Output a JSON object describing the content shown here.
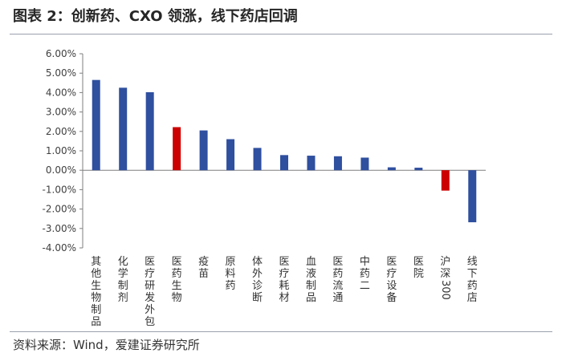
{
  "title": "图表 2：创新药、CXO 领涨，线下药店回调",
  "source": "资料来源：Wind，爱建证券研究所",
  "colors": {
    "default": "#2f4f9f",
    "highlight": "#cc0000",
    "axis": "#7f7f7f",
    "text": "#404040"
  },
  "chart_data": {
    "type": "bar",
    "title": "",
    "xlabel": "",
    "ylabel": "",
    "ylim": [
      -0.04,
      0.06
    ],
    "y_ticks": [
      0.06,
      0.05,
      0.04,
      0.03,
      0.02,
      0.01,
      0.0,
      -0.01,
      -0.02,
      -0.03,
      -0.04
    ],
    "y_tick_labels": [
      "6.00%",
      "5.00%",
      "4.00%",
      "3.00%",
      "2.00%",
      "1.00%",
      "0.00%",
      "-1.00%",
      "-2.00%",
      "-3.00%",
      "-4.00%"
    ],
    "grid": false,
    "categories": [
      "其他生物制品",
      "化学制剂",
      "医疗研发外包",
      "医药生物",
      "疫苗",
      "原料药",
      "体外诊断",
      "医疗耗材",
      "血液制品",
      "医药流通",
      "中药二",
      "医疗设备",
      "医院",
      "沪深300",
      "线下药店"
    ],
    "values": [
      0.0465,
      0.0425,
      0.0402,
      0.0222,
      0.0205,
      0.016,
      0.0115,
      0.0078,
      0.0075,
      0.0072,
      0.0065,
      0.0015,
      0.0013,
      -0.0105,
      -0.0268
    ],
    "highlighted": [
      "医药生物",
      "沪深300"
    ]
  }
}
